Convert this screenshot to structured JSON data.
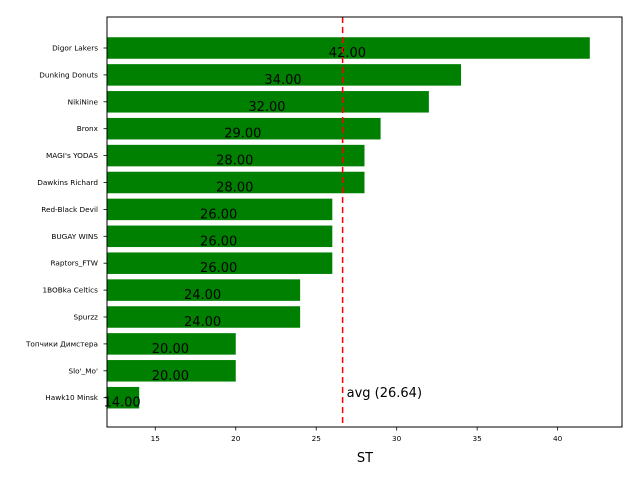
{
  "chart_data": {
    "type": "bar",
    "orientation": "horizontal",
    "categories": [
      "Digor Lakers",
      "Dunking Donuts",
      "NikiNine",
      "Bronx",
      "MAGI's YODAS",
      "Dawkins Richard",
      "Red-Black Devil",
      "BUGAY WINS",
      "Raptors_FTW",
      "1BOBka Celtics",
      "Spurzz",
      "Топчики Димстера",
      "Slo'_Mo'",
      "Hawk10 Minsk"
    ],
    "values": [
      42,
      34,
      32,
      29,
      28,
      28,
      26,
      26,
      26,
      24,
      24,
      20,
      20,
      14
    ],
    "value_labels": [
      "42.00",
      "34.00",
      "32.00",
      "29.00",
      "28.00",
      "28.00",
      "26.00",
      "26.00",
      "26.00",
      "24.00",
      "24.00",
      "20.00",
      "20.00",
      "14.00"
    ],
    "xlabel": "ST",
    "ylabel": "",
    "title": "",
    "xlim": [
      12,
      44
    ],
    "xticks": [
      15,
      20,
      25,
      30,
      35,
      40
    ],
    "xtick_labels": [
      "15",
      "20",
      "25",
      "30",
      "35",
      "40"
    ],
    "average": 26.64,
    "average_label": "avg (26.64)",
    "bar_color": "#008000",
    "avg_line_color": "#ff0000",
    "grid": false
  }
}
